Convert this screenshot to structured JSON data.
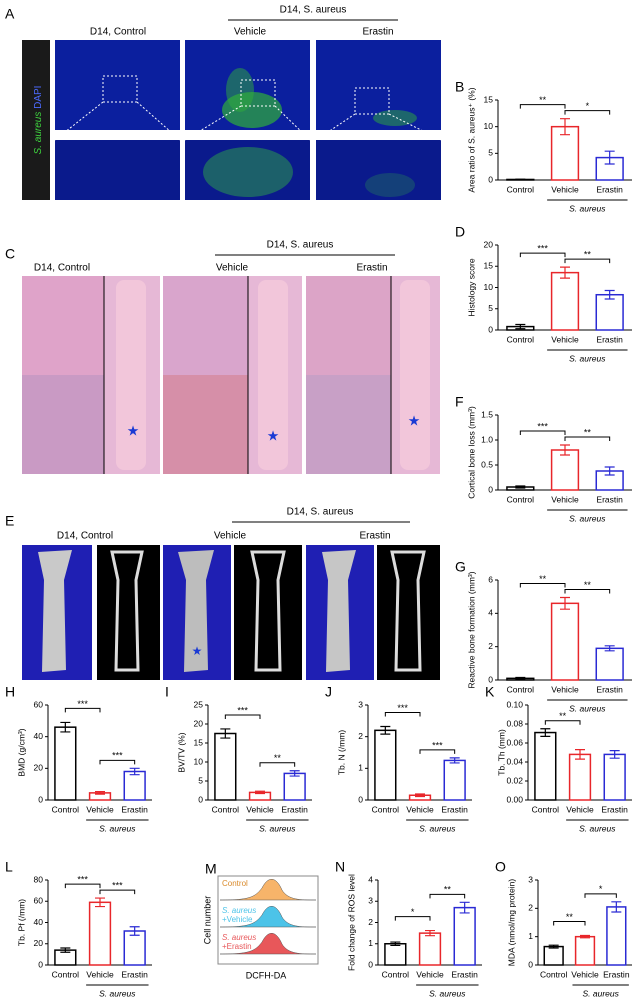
{
  "panels": {
    "A": {
      "letter": "A",
      "group": "D14, S. aureus",
      "columns": [
        "D14, Control",
        "Vehicle",
        "Erastin"
      ],
      "stain_green": "S. aureus",
      "stain_blue": "DAPI"
    },
    "C": {
      "letter": "C",
      "group": "D14, S. aureus",
      "columns": [
        "D14, Control",
        "Vehicle",
        "Erastin"
      ]
    },
    "E": {
      "letter": "E",
      "group": "D14, S. aureus",
      "columns": [
        "D14, Control",
        "Vehicle",
        "Erastin"
      ]
    }
  },
  "flow": {
    "letter": "M",
    "ylabel": "Cell number",
    "xlabel": "DCFH-DA",
    "samples": [
      {
        "lines": [
          "Control"
        ],
        "color": "#f7b46a"
      },
      {
        "lines": [
          "S. aureus",
          "+Vehicle"
        ],
        "color": "#4cc3e8"
      },
      {
        "lines": [
          "S. aureus",
          "+Erastin"
        ],
        "color": "#e8575a"
      }
    ]
  },
  "chart_data": [
    {
      "type": "bar",
      "letter": "B",
      "ylabel": "Area ratio of S. aureus⁺ (%)",
      "categories": [
        "Control",
        "Vehicle",
        "Erastin"
      ],
      "values": [
        0.1,
        10,
        4.2
      ],
      "errors": [
        0.05,
        1.5,
        1.2
      ],
      "colors": [
        "#000000",
        "#e8262a",
        "#2a2ad4"
      ],
      "ylim": [
        0,
        15
      ],
      "yticks": [
        0,
        5,
        10,
        15
      ],
      "significance": [
        {
          "from": 0,
          "to": 1,
          "label": "**"
        },
        {
          "from": 1,
          "to": 2,
          "label": "*"
        }
      ],
      "group_label": "S. aureus"
    },
    {
      "type": "bar",
      "letter": "D",
      "ylabel": "Histology score",
      "categories": [
        "Control",
        "Vehicle",
        "Erastin"
      ],
      "values": [
        0.8,
        13.5,
        8.3
      ],
      "errors": [
        0.5,
        1.3,
        1.0
      ],
      "colors": [
        "#000000",
        "#e8262a",
        "#2a2ad4"
      ],
      "ylim": [
        0,
        20
      ],
      "yticks": [
        0,
        5,
        10,
        15,
        20
      ],
      "significance": [
        {
          "from": 0,
          "to": 1,
          "label": "***"
        },
        {
          "from": 1,
          "to": 2,
          "label": "**"
        }
      ],
      "group_label": "S. aureus"
    },
    {
      "type": "bar",
      "letter": "F",
      "ylabel": "Cortical bone loss (mm³)",
      "categories": [
        "Control",
        "Vehicle",
        "Erastin"
      ],
      "values": [
        0.06,
        0.8,
        0.38
      ],
      "errors": [
        0.02,
        0.1,
        0.08
      ],
      "colors": [
        "#000000",
        "#e8262a",
        "#2a2ad4"
      ],
      "ylim": [
        0,
        1.5
      ],
      "yticks": [
        0,
        0.5,
        {
          "value": 1,
          "label": "1.0"
        },
        1.5
      ],
      "significance": [
        {
          "from": 0,
          "to": 1,
          "label": "***"
        },
        {
          "from": 1,
          "to": 2,
          "label": "**"
        }
      ],
      "group_label": "S. aureus"
    },
    {
      "type": "bar",
      "letter": "G",
      "ylabel": "Reactive bone formation (mm³)",
      "categories": [
        "Control",
        "Vehicle",
        "Erastin"
      ],
      "values": [
        0.1,
        4.6,
        1.9
      ],
      "errors": [
        0.05,
        0.35,
        0.15
      ],
      "colors": [
        "#000000",
        "#e8262a",
        "#2a2ad4"
      ],
      "ylim": [
        0,
        6
      ],
      "yticks": [
        0,
        2,
        4,
        6
      ],
      "significance": [
        {
          "from": 0,
          "to": 1,
          "label": "**"
        },
        {
          "from": 1,
          "to": 2,
          "label": "**"
        }
      ],
      "group_label": "S. aureus"
    },
    {
      "type": "bar",
      "letter": "H",
      "ylabel": "BMD (g/cm³)",
      "categories": [
        "Control",
        "Vehicle",
        "Erastin"
      ],
      "values": [
        46,
        4.5,
        18
      ],
      "errors": [
        3,
        0.8,
        2
      ],
      "colors": [
        "#000000",
        "#e8262a",
        "#2a2ad4"
      ],
      "ylim": [
        0,
        60
      ],
      "yticks": [
        0,
        20,
        40,
        60
      ],
      "significance": [
        {
          "from": 0,
          "to": 1,
          "label": "***"
        },
        {
          "from": 1,
          "to": 2,
          "label": "***"
        }
      ],
      "group_label": "S. aureus"
    },
    {
      "type": "bar",
      "letter": "I",
      "ylabel": "BV/TV (%)",
      "categories": [
        "Control",
        "Vehicle",
        "Erastin"
      ],
      "values": [
        17.5,
        2,
        7
      ],
      "errors": [
        1.2,
        0.3,
        0.7
      ],
      "colors": [
        "#000000",
        "#e8262a",
        "#2a2ad4"
      ],
      "ylim": [
        0,
        25
      ],
      "yticks": [
        0,
        5,
        10,
        15,
        20,
        25
      ],
      "significance": [
        {
          "from": 0,
          "to": 1,
          "label": "***"
        },
        {
          "from": 1,
          "to": 2,
          "label": "**"
        }
      ],
      "group_label": "S. aureus"
    },
    {
      "type": "bar",
      "letter": "J",
      "ylabel": "Tb. N (/mm)",
      "categories": [
        "Control",
        "Vehicle",
        "Erastin"
      ],
      "values": [
        2.2,
        0.15,
        1.25
      ],
      "errors": [
        0.12,
        0.04,
        0.08
      ],
      "colors": [
        "#000000",
        "#e8262a",
        "#2a2ad4"
      ],
      "ylim": [
        0,
        3
      ],
      "yticks": [
        0,
        1,
        2,
        3
      ],
      "significance": [
        {
          "from": 0,
          "to": 1,
          "label": "***"
        },
        {
          "from": 1,
          "to": 2,
          "label": "***"
        }
      ],
      "group_label": "S. aureus"
    },
    {
      "type": "bar",
      "letter": "K",
      "ylabel": "Tb. Th (mm)",
      "categories": [
        "Control",
        "Vehicle",
        "Erastin"
      ],
      "values": [
        0.071,
        0.048,
        0.048
      ],
      "errors": [
        0.004,
        0.005,
        0.004
      ],
      "colors": [
        "#000000",
        "#e8262a",
        "#2a2ad4"
      ],
      "ylim": [
        0,
        0.1
      ],
      "yticks": [
        {
          "value": 0,
          "label": "0.00"
        },
        0.02,
        0.04,
        0.06,
        0.08,
        {
          "value": 0.1,
          "label": "0.10"
        }
      ],
      "significance": [
        {
          "from": 0,
          "to": 1,
          "label": "**"
        }
      ],
      "group_label": "S. aureus"
    },
    {
      "type": "bar",
      "letter": "L",
      "ylabel": "Tb. Pf (/mm)",
      "categories": [
        "Control",
        "Vehicle",
        "Erastin"
      ],
      "values": [
        14,
        59,
        32
      ],
      "errors": [
        2,
        4,
        4
      ],
      "colors": [
        "#000000",
        "#e8262a",
        "#2a2ad4"
      ],
      "ylim": [
        0,
        80
      ],
      "yticks": [
        0,
        20,
        40,
        60,
        80
      ],
      "significance": [
        {
          "from": 0,
          "to": 1,
          "label": "***"
        },
        {
          "from": 1,
          "to": 2,
          "label": "***"
        }
      ],
      "group_label": "S. aureus"
    },
    {
      "type": "bar",
      "letter": "N",
      "ylabel": "Fold change of ROS level",
      "categories": [
        "Control",
        "Vehicle",
        "Erastin"
      ],
      "values": [
        1.0,
        1.5,
        2.7
      ],
      "errors": [
        0.08,
        0.12,
        0.25
      ],
      "colors": [
        "#000000",
        "#e8262a",
        "#2a2ad4"
      ],
      "ylim": [
        0,
        4
      ],
      "yticks": [
        0,
        1,
        2,
        3,
        4
      ],
      "significance": [
        {
          "from": 0,
          "to": 1,
          "label": "*"
        },
        {
          "from": 1,
          "to": 2,
          "label": "**"
        }
      ],
      "group_label": "S. aureus"
    },
    {
      "type": "bar",
      "letter": "O",
      "ylabel": "MDA (nmol/mg protein)",
      "categories": [
        "Control",
        "Vehicle",
        "Erastin"
      ],
      "values": [
        0.65,
        1.0,
        2.05
      ],
      "errors": [
        0.05,
        0.04,
        0.18
      ],
      "colors": [
        "#000000",
        "#e8262a",
        "#2a2ad4"
      ],
      "ylim": [
        0,
        3
      ],
      "yticks": [
        0,
        1,
        2,
        3
      ],
      "significance": [
        {
          "from": 0,
          "to": 1,
          "label": "**"
        },
        {
          "from": 1,
          "to": 2,
          "label": "*"
        }
      ],
      "group_label": "S. aureus"
    }
  ]
}
